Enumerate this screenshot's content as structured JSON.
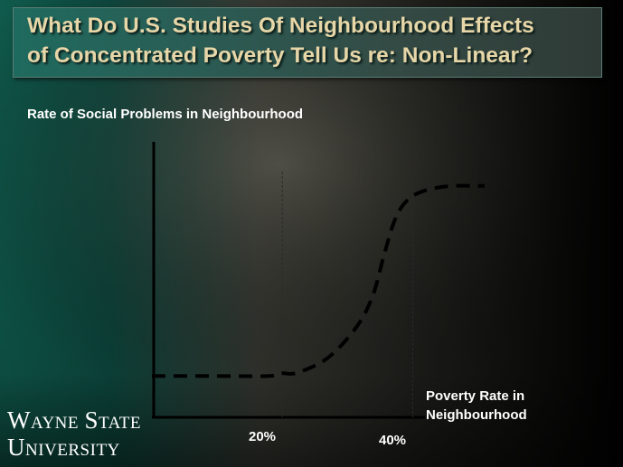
{
  "slide": {
    "title_line1": "What Do U.S. Studies Of Neighbourhood Effects",
    "title_line2": "of Concentrated Poverty Tell Us re: Non-Linear?",
    "colors": {
      "title_text": "#e6d6a8",
      "title_box": "#2a5d55",
      "background_left": "#0f5a4c",
      "background_right": "#000000",
      "curve": "#000000"
    }
  },
  "chart_data": {
    "type": "line",
    "ylabel": "Rate of Social Problems in Neighbourhood",
    "xlabel_line1": "Poverty Rate in",
    "xlabel_line2": "Neighbourhood",
    "x_ticks": [
      "20%",
      "40%"
    ],
    "reference_lines": [
      20,
      40
    ],
    "xlim": [
      0,
      52
    ],
    "ylim": [
      0,
      100
    ],
    "series": [
      {
        "style": "dashed",
        "points": [
          [
            0,
            15
          ],
          [
            10,
            15
          ],
          [
            18,
            15
          ],
          [
            20,
            16
          ],
          [
            22,
            16
          ],
          [
            26,
            20
          ],
          [
            29,
            26
          ],
          [
            32,
            35
          ],
          [
            34,
            45
          ],
          [
            35.5,
            58
          ],
          [
            37,
            70
          ],
          [
            38.5,
            77
          ],
          [
            40.5,
            81
          ],
          [
            43,
            83
          ],
          [
            46,
            84
          ],
          [
            51,
            84
          ]
        ]
      }
    ]
  },
  "logo": {
    "line1_big": "W",
    "line1_small": "AYNE",
    "line1_big2": "S",
    "line1_small2": "TATE",
    "line2_big": "U",
    "line2_small": "NIVERSITY"
  }
}
